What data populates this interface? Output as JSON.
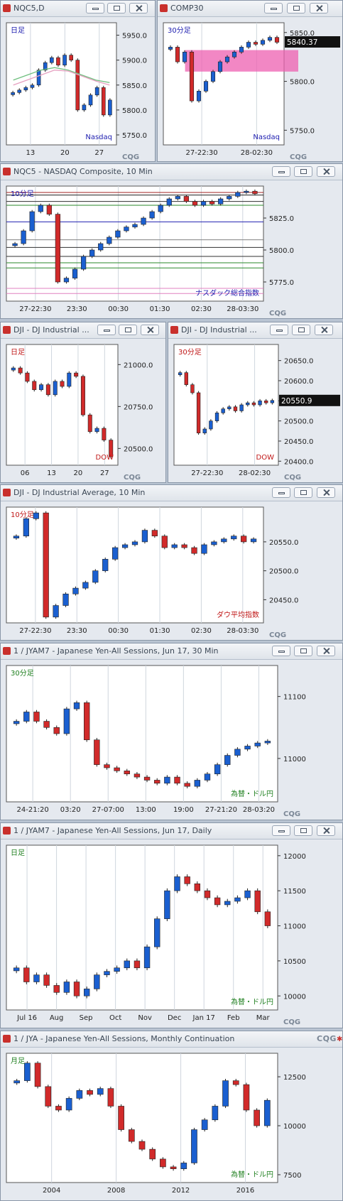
{
  "app": {
    "cqg_logo": "CQG",
    "cqg_mark": "✱"
  },
  "windows": [
    {
      "title": "NQC5,D",
      "tag": "日足",
      "index_label": "Nasdaq"
    },
    {
      "title": "COMP30",
      "tag": "30分足",
      "index_label": "Nasdaq",
      "last_price": "5840.37"
    },
    {
      "title": "NQC5 - NASDAQ Composite, 10 Min",
      "tag": "10分足",
      "index_label": "ナスダック総合指数"
    },
    {
      "title": "DJI - DJ Industrial ...",
      "tag": "日足",
      "index_label": "DOW"
    },
    {
      "title": "DJI - DJ Industrial ...",
      "tag": "30分足",
      "index_label": "DOW",
      "last_price": "20550.9"
    },
    {
      "title": "DJI - DJ Industrial Average, 10 Min",
      "tag": "10分足",
      "index_label": "ダウ平均指数"
    },
    {
      "title": "1 / JYAM7 - Japanese Yen-All Sessions, Jun 17, 30 Min",
      "tag": "30分足",
      "index_label": "為替・ドル円",
      "last_price": "11028"
    },
    {
      "title": "1 / JYAM7 - Japanese Yen-All Sessions, Jun 17, Daily",
      "tag": "日足",
      "index_label": "為替・ドル円"
    },
    {
      "title": "1 / JYA - Japanese Yen-All Sessions, Monthly Continuation",
      "tag": "月足",
      "index_label": "為替・ドル円"
    }
  ],
  "chart_data": [
    {
      "type": "candlestick",
      "title": "NQC5,D",
      "x_ticks": [
        "13",
        "20",
        "27"
      ],
      "y_ticks": [
        5950,
        5900,
        5850,
        5800,
        5750
      ],
      "ylim": [
        5730,
        5975
      ],
      "close_path": [
        5835,
        5840,
        5845,
        5850,
        5880,
        5895,
        5905,
        5890,
        5910,
        5900,
        5800,
        5810,
        5830,
        5845,
        5790,
        5820
      ],
      "ma": [
        {
          "name": "",
          "color": "#6fbf7f",
          "values": [
            5860,
            5870,
            5880,
            5885,
            5880,
            5870,
            5860,
            5855
          ]
        },
        {
          "name": "",
          "color": "#e6a0c0",
          "values": [
            5850,
            5860,
            5870,
            5880,
            5878,
            5868,
            5858,
            5850
          ]
        }
      ]
    },
    {
      "type": "candlestick",
      "title": "COMP30",
      "x_ticks": [
        "27-22:30",
        "28-02:30"
      ],
      "y_ticks": [
        5850,
        5800,
        5750
      ],
      "ylim": [
        5735,
        5860
      ],
      "close_path": [
        5835,
        5820,
        5830,
        5780,
        5790,
        5800,
        5810,
        5820,
        5825,
        5830,
        5835,
        5840,
        5838,
        5842,
        5845,
        5840
      ],
      "highlight_band": [
        5810,
        5832
      ],
      "last": 5840.37
    },
    {
      "type": "candlestick",
      "title": "NQC5 - NASDAQ Composite, 10 Min",
      "x_ticks": [
        "27-22:30",
        "23:30",
        "00:30",
        "01:30",
        "02:30",
        "28-03:30"
      ],
      "y_ticks": [
        5825,
        5800,
        5775
      ],
      "ylim": [
        5760,
        5850
      ],
      "close_path": [
        5805,
        5815,
        5830,
        5835,
        5828,
        5775,
        5778,
        5785,
        5795,
        5800,
        5805,
        5810,
        5815,
        5818,
        5820,
        5825,
        5830,
        5835,
        5840,
        5842,
        5838,
        5835,
        5838,
        5836,
        5840,
        5842,
        5845,
        5846,
        5844
      ],
      "levels": [
        {
          "v": 5845,
          "color": "#a02020"
        },
        {
          "v": 5843,
          "color": "#202020"
        },
        {
          "v": 5838,
          "color": "#303030"
        },
        {
          "v": 5835,
          "color": "#2a8a2a"
        },
        {
          "v": 5822,
          "color": "#2020b0"
        },
        {
          "v": 5808,
          "color": "#808080"
        },
        {
          "v": 5802,
          "color": "#303030"
        },
        {
          "v": 5795,
          "color": "#303030"
        },
        {
          "v": 5790,
          "color": "#2a8a2a"
        },
        {
          "v": 5786,
          "color": "#2a8a2a"
        },
        {
          "v": 5770,
          "color": "#e080c0"
        },
        {
          "v": 5766,
          "color": "#e080c0"
        }
      ]
    },
    {
      "type": "candlestick",
      "title": "DJI - DJ Industrial, D",
      "x_ticks": [
        "06",
        "13",
        "20",
        "27"
      ],
      "y_ticks": [
        21000,
        20750,
        20500
      ],
      "ylim": [
        20400,
        21120
      ],
      "close_path": [
        20980,
        20950,
        20900,
        20850,
        20880,
        20820,
        20900,
        20870,
        20950,
        20930,
        20700,
        20600,
        20620,
        20550,
        20450
      ]
    },
    {
      "type": "candlestick",
      "title": "DJI - DJ Industrial, 30",
      "x_ticks": [
        "27-22:30",
        "28-02:30"
      ],
      "y_ticks": [
        20650,
        20600,
        20550,
        20500,
        20450,
        20400
      ],
      "ylim": [
        20390,
        20690
      ],
      "close_path": [
        20620,
        20590,
        20570,
        20470,
        20480,
        20500,
        20520,
        20530,
        20535,
        20525,
        20540,
        20545,
        20540,
        20550,
        20545,
        20550.9
      ],
      "last": 20550.9
    },
    {
      "type": "candlestick",
      "title": "DJI - DJ Industrial Average, 10 Min",
      "x_ticks": [
        "27-22:30",
        "23:30",
        "00:30",
        "01:30",
        "02:30",
        "28-03:30"
      ],
      "y_ticks": [
        20550,
        20500,
        20450
      ],
      "ylim": [
        20410,
        20610
      ],
      "close_path": [
        20560,
        20590,
        20600,
        20420,
        20440,
        20460,
        20470,
        20480,
        20500,
        20520,
        20540,
        20545,
        20550,
        20570,
        20560,
        20540,
        20545,
        20540,
        20530,
        20545,
        20550,
        20555,
        20560,
        20550,
        20555
      ]
    },
    {
      "type": "candlestick",
      "title": "JYAM7 30 Min",
      "x_ticks": [
        "24-21:20",
        "03:20",
        "27-07:00",
        "13:00",
        "19:00",
        "27-21:20",
        "28-03:20"
      ],
      "y_ticks": [
        11100,
        11000
      ],
      "ylim": [
        10930,
        11150
      ],
      "close_path": [
        11060,
        11075,
        11060,
        11050,
        11040,
        11080,
        11090,
        11030,
        10990,
        10985,
        10980,
        10975,
        10970,
        10965,
        10960,
        10970,
        10960,
        10955,
        10965,
        10975,
        10990,
        11005,
        11015,
        11020,
        11025,
        11028
      ]
    },
    {
      "type": "candlestick",
      "title": "JYAM7 Daily",
      "x_ticks": [
        "Jul 16",
        "Aug",
        "Sep",
        "Oct",
        "Nov",
        "Dec",
        "Jan 17",
        "Feb",
        "Mar"
      ],
      "y_ticks": [
        12000,
        11500,
        11000,
        10500,
        10000
      ],
      "ylim": [
        9800,
        12150
      ],
      "close_path": [
        10400,
        10200,
        10300,
        10150,
        10050,
        10200,
        10000,
        10100,
        10300,
        10350,
        10400,
        10500,
        10400,
        10700,
        11100,
        11500,
        11700,
        11600,
        11500,
        11400,
        11300,
        11350,
        11400,
        11500,
        11200,
        11000
      ]
    },
    {
      "type": "candlestick",
      "title": "JYA Monthly",
      "x_ticks": [
        "2004",
        "2008",
        "2012",
        "2016"
      ],
      "y_ticks": [
        12500,
        10000,
        7500
      ],
      "ylim": [
        7100,
        13700
      ],
      "close_path": [
        12300,
        13200,
        12000,
        11000,
        10800,
        11400,
        11800,
        11600,
        11900,
        11000,
        9800,
        9200,
        8800,
        8300,
        7900,
        7800,
        8100,
        9800,
        10300,
        11000,
        12300,
        12100,
        10800,
        10000,
        11300
      ]
    }
  ]
}
